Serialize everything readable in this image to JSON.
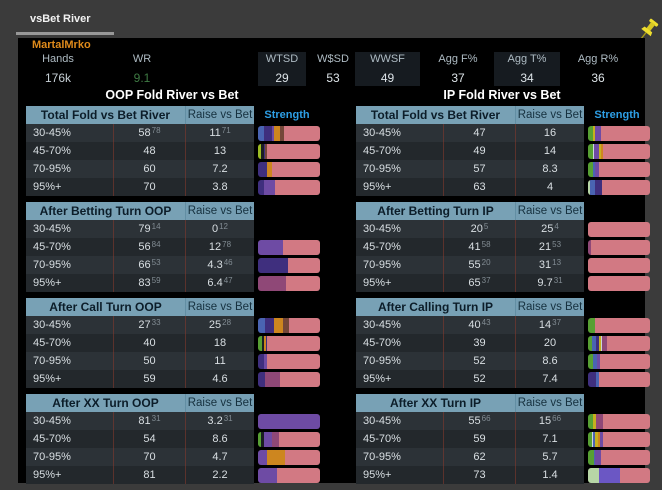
{
  "tab": {
    "label": "vsBet River"
  },
  "player": {
    "name": "MartalMrko"
  },
  "summary": [
    {
      "label": "Hands",
      "value": "176k",
      "boxed": false,
      "value_color": "#c7d0d6"
    },
    {
      "label": "WR",
      "value": "9.1",
      "boxed": false,
      "value_color": "#3f7b44"
    },
    {
      "label": "WTSD",
      "value": "29",
      "boxed": true,
      "value_color": "#dde4e8"
    },
    {
      "label": "W$SD",
      "value": "53",
      "boxed": false,
      "value_color": "#dde4e8"
    },
    {
      "label": "WWSF",
      "value": "49",
      "boxed": true,
      "value_color": "#dde4e8"
    },
    {
      "label": "Agg F%",
      "value": "37",
      "boxed": false,
      "value_color": "#dde4e8"
    },
    {
      "label": "Agg T%",
      "value": "34",
      "boxed": true,
      "value_color": "#dde4e8"
    },
    {
      "label": "Agg R%",
      "value": "36",
      "boxed": false,
      "value_color": "#dde4e8"
    }
  ],
  "bar_colors": {
    "pink": "#d27983",
    "purple": "#6e4ba4",
    "indigo": "#3f2f7e",
    "blue": "#4a64b2",
    "orange": "#cd861f",
    "brown": "#744739",
    "green": "#57a033",
    "yellowgreen": "#9cbc23",
    "yellow": "#c6b01f",
    "plum": "#8f4877",
    "palegreen": "#b7d6a6",
    "blueviolet": "#6b57c4",
    "light": "#ccd6da",
    "dark": "#1b1e22"
  },
  "columns": [
    {
      "title": "OOP Fold River vs Bet",
      "strength_label": "Strength",
      "sections": [
        {
          "header": "Total Fold vs Bet River",
          "raise_header": "Raise vs Bet",
          "show_strength": true,
          "rows": [
            {
              "label": "30-45%",
              "fold": "58",
              "fold_n": "78",
              "raise": "11",
              "raise_n": "71",
              "bar": [
                [
                  "blue",
                  9
                ],
                [
                  "indigo",
                  13
                ],
                [
                  "purple",
                  4
                ],
                [
                  "orange",
                  10
                ],
                [
                  "brown",
                  6
                ],
                [
                  "pink",
                  58
                ]
              ]
            },
            {
              "label": "45-70%",
              "fold": "48",
              "fold_n": "",
              "raise": "13",
              "raise_n": "",
              "bar": [
                [
                  "yellowgreen",
                  5
                ],
                [
                  "dark",
                  4
                ],
                [
                  "indigo",
                  3
                ],
                [
                  "brown",
                  2
                ],
                [
                  "pink",
                  86
                ]
              ]
            },
            {
              "label": "70-95%",
              "fold": "60",
              "fold_n": "",
              "raise": "7.2",
              "raise_n": "",
              "bar": [
                [
                  "indigo",
                  14
                ],
                [
                  "orange",
                  8
                ],
                [
                  "pink",
                  78
                ]
              ]
            },
            {
              "label": "95%+",
              "fold": "70",
              "fold_n": "",
              "raise": "3.8",
              "raise_n": "",
              "bar": [
                [
                  "indigo",
                  9
                ],
                [
                  "purple",
                  18
                ],
                [
                  "pink",
                  73
                ]
              ]
            }
          ]
        },
        {
          "header": "After Betting Turn OOP",
          "raise_header": "Raise vs Bet",
          "show_strength": false,
          "rows": [
            {
              "label": "30-45%",
              "fold": "79",
              "fold_n": "14",
              "raise": "0",
              "raise_n": "12",
              "bar": []
            },
            {
              "label": "45-70%",
              "fold": "56",
              "fold_n": "84",
              "raise": "12",
              "raise_n": "78",
              "bar": [
                [
                  "purple",
                  40
                ],
                [
                  "pink",
                  60
                ]
              ]
            },
            {
              "label": "70-95%",
              "fold": "66",
              "fold_n": "53",
              "raise": "4.3",
              "raise_n": "46",
              "bar": [
                [
                  "indigo",
                  48
                ],
                [
                  "pink",
                  52
                ]
              ]
            },
            {
              "label": "95%+",
              "fold": "83",
              "fold_n": "59",
              "raise": "6.4",
              "raise_n": "47",
              "bar": [
                [
                  "plum",
                  45
                ],
                [
                  "pink",
                  55
                ]
              ]
            }
          ]
        },
        {
          "header": "After Call Turn OOP",
          "raise_header": "Raise vs Bet",
          "show_strength": false,
          "rows": [
            {
              "label": "30-45%",
              "fold": "27",
              "fold_n": "33",
              "raise": "25",
              "raise_n": "28",
              "bar": [
                [
                  "blue",
                  11
                ],
                [
                  "indigo",
                  15
                ],
                [
                  "orange",
                  14
                ],
                [
                  "brown",
                  10
                ],
                [
                  "pink",
                  50
                ]
              ]
            },
            {
              "label": "45-70%",
              "fold": "40",
              "fold_n": "",
              "raise": "18",
              "raise_n": "",
              "bar": [
                [
                  "green",
                  6
                ],
                [
                  "dark",
                  3
                ],
                [
                  "orange",
                  4
                ],
                [
                  "indigo",
                  2
                ],
                [
                  "pink",
                  85
                ]
              ]
            },
            {
              "label": "70-95%",
              "fold": "50",
              "fold_n": "",
              "raise": "11",
              "raise_n": "",
              "bar": [
                [
                  "indigo",
                  10
                ],
                [
                  "purple",
                  4
                ],
                [
                  "pink",
                  86
                ]
              ]
            },
            {
              "label": "95%+",
              "fold": "59",
              "fold_n": "",
              "raise": "4.6",
              "raise_n": "",
              "bar": [
                [
                  "indigo",
                  11
                ],
                [
                  "plum",
                  25
                ],
                [
                  "pink",
                  64
                ]
              ]
            }
          ]
        },
        {
          "header": "After XX Turn  OOP",
          "raise_header": "Raise vs Bet",
          "show_strength": false,
          "rows": [
            {
              "label": "30-45%",
              "fold": "81",
              "fold_n": "31",
              "raise": "3.2",
              "raise_n": "31",
              "bar": [
                [
                  "purple",
                  100
                ]
              ]
            },
            {
              "label": "45-70%",
              "fold": "54",
              "fold_n": "",
              "raise": "8.6",
              "raise_n": "",
              "bar": [
                [
                  "green",
                  5
                ],
                [
                  "dark",
                  4
                ],
                [
                  "purple",
                  13
                ],
                [
                  "plum",
                  12
                ],
                [
                  "pink",
                  66
                ]
              ]
            },
            {
              "label": "70-95%",
              "fold": "70",
              "fold_n": "",
              "raise": "4.7",
              "raise_n": "",
              "bar": [
                [
                  "purple",
                  14
                ],
                [
                  "orange",
                  30
                ],
                [
                  "pink",
                  56
                ]
              ]
            },
            {
              "label": "95%+",
              "fold": "81",
              "fold_n": "",
              "raise": "2.2",
              "raise_n": "",
              "bar": [
                [
                  "purple",
                  30
                ],
                [
                  "pink",
                  70
                ]
              ]
            }
          ]
        }
      ]
    },
    {
      "title": "IP Fold River vs Bet",
      "strength_label": "Strength",
      "sections": [
        {
          "header": "Total Fold vs Bet River",
          "raise_header": "Raise vs Bet",
          "show_strength": true,
          "rows": [
            {
              "label": "30-45%",
              "fold": "47",
              "fold_n": "",
              "raise": "16",
              "raise_n": "",
              "bar": [
                [
                  "green",
                  8
                ],
                [
                  "yellow",
                  4
                ],
                [
                  "purple",
                  9
                ],
                [
                  "pink",
                  79
                ]
              ]
            },
            {
              "label": "45-70%",
              "fold": "49",
              "fold_n": "",
              "raise": "14",
              "raise_n": "",
              "bar": [
                [
                  "green",
                  8
                ],
                [
                  "light",
                  2
                ],
                [
                  "purple",
                  8
                ],
                [
                  "yellow",
                  3
                ],
                [
                  "orange",
                  4
                ],
                [
                  "pink",
                  75
                ]
              ]
            },
            {
              "label": "70-95%",
              "fold": "57",
              "fold_n": "",
              "raise": "8.3",
              "raise_n": "",
              "bar": [
                [
                  "green",
                  8
                ],
                [
                  "blue",
                  4
                ],
                [
                  "purple",
                  6
                ],
                [
                  "pink",
                  82
                ]
              ]
            },
            {
              "label": "95%+",
              "fold": "63",
              "fold_n": "",
              "raise": "4",
              "raise_n": "",
              "bar": [
                [
                  "palegreen",
                  4
                ],
                [
                  "blue",
                  8
                ],
                [
                  "indigo",
                  10
                ],
                [
                  "pink",
                  78
                ]
              ]
            }
          ]
        },
        {
          "header": "After Betting Turn IP",
          "raise_header": "Raise vs Bet",
          "show_strength": false,
          "rows": [
            {
              "label": "30-45%",
              "fold": "20",
              "fold_n": "5",
              "raise": "25",
              "raise_n": "4",
              "bar": [
                [
                  "pink",
                  100
                ]
              ]
            },
            {
              "label": "45-70%",
              "fold": "41",
              "fold_n": "58",
              "raise": "21",
              "raise_n": "53",
              "bar": [
                [
                  "plum",
                  5
                ],
                [
                  "pink",
                  95
                ]
              ]
            },
            {
              "label": "70-95%",
              "fold": "55",
              "fold_n": "20",
              "raise": "31",
              "raise_n": "13",
              "bar": [
                [
                  "pink",
                  100
                ]
              ]
            },
            {
              "label": "95%+",
              "fold": "65",
              "fold_n": "37",
              "raise": "9.7",
              "raise_n": "31",
              "bar": [
                [
                  "pink",
                  100
                ]
              ]
            }
          ]
        },
        {
          "header": "After Calling Turn IP",
          "raise_header": "Raise vs Bet",
          "show_strength": false,
          "rows": [
            {
              "label": "30-45%",
              "fold": "40",
              "fold_n": "43",
              "raise": "14",
              "raise_n": "37",
              "bar": [
                [
                  "green",
                  12
                ],
                [
                  "pink",
                  88
                ]
              ]
            },
            {
              "label": "45-70%",
              "fold": "39",
              "fold_n": "",
              "raise": "20",
              "raise_n": "",
              "bar": [
                [
                  "green",
                  6
                ],
                [
                  "blue",
                  7
                ],
                [
                  "indigo",
                  5
                ],
                [
                  "yellow",
                  3
                ],
                [
                  "light",
                  2
                ],
                [
                  "plum",
                  8
                ],
                [
                  "pink",
                  69
                ]
              ]
            },
            {
              "label": "70-95%",
              "fold": "52",
              "fold_n": "",
              "raise": "8.6",
              "raise_n": "",
              "bar": [
                [
                  "green",
                  8
                ],
                [
                  "blue",
                  7
                ],
                [
                  "purple",
                  5
                ],
                [
                  "pink",
                  80
                ]
              ]
            },
            {
              "label": "95%+",
              "fold": "52",
              "fold_n": "",
              "raise": "7.4",
              "raise_n": "",
              "bar": [
                [
                  "indigo",
                  13
                ],
                [
                  "blue",
                  4
                ],
                [
                  "pink",
                  83
                ]
              ]
            }
          ]
        },
        {
          "header": "After XX Turn  IP",
          "raise_header": "Raise vs Bet",
          "show_strength": false,
          "rows": [
            {
              "label": "30-45%",
              "fold": "55",
              "fold_n": "66",
              "raise": "15",
              "raise_n": "66",
              "bar": [
                [
                  "green",
                  8
                ],
                [
                  "yellow",
                  5
                ],
                [
                  "plum",
                  12
                ],
                [
                  "pink",
                  75
                ]
              ]
            },
            {
              "label": "45-70%",
              "fold": "59",
              "fold_n": "",
              "raise": "7.1",
              "raise_n": "",
              "bar": [
                [
                  "green",
                  6
                ],
                [
                  "light",
                  2
                ],
                [
                  "blue",
                  4
                ],
                [
                  "yellow",
                  4
                ],
                [
                  "orange",
                  3
                ],
                [
                  "purple",
                  5
                ],
                [
                  "pink",
                  76
                ]
              ]
            },
            {
              "label": "70-95%",
              "fold": "62",
              "fold_n": "",
              "raise": "5.7",
              "raise_n": "",
              "bar": [
                [
                  "green",
                  9
                ],
                [
                  "blue",
                  3
                ],
                [
                  "purple",
                  9
                ],
                [
                  "pink",
                  79
                ]
              ]
            },
            {
              "label": "95%+",
              "fold": "73",
              "fold_n": "",
              "raise": "1.4",
              "raise_n": "",
              "bar": [
                [
                  "palegreen",
                  17
                ],
                [
                  "blueviolet",
                  34
                ],
                [
                  "pink",
                  49
                ]
              ]
            }
          ]
        }
      ]
    }
  ]
}
